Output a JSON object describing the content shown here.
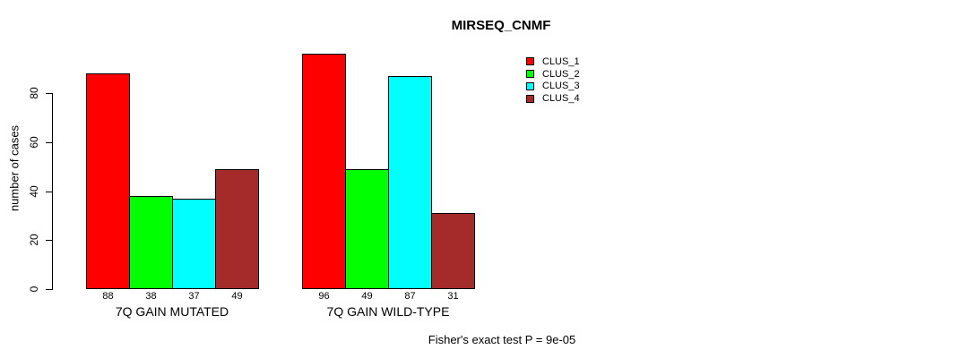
{
  "chart_data": {
    "type": "bar",
    "title": "MIRSEQ_CNMF",
    "ylabel": "number of cases",
    "footnote": "Fisher's exact test P = 9e-05",
    "categories": [
      "7Q GAIN MUTATED",
      "7Q GAIN WILD-TYPE"
    ],
    "series": [
      {
        "name": "CLUS_1",
        "color": "#ff0000",
        "values": [
          88,
          96
        ]
      },
      {
        "name": "CLUS_2",
        "color": "#00ff00",
        "values": [
          38,
          49
        ]
      },
      {
        "name": "CLUS_3",
        "color": "#00ffff",
        "values": [
          37,
          87
        ]
      },
      {
        "name": "CLUS_4",
        "color": "#a52a2a",
        "values": [
          49,
          31
        ]
      }
    ],
    "yticks": [
      0,
      20,
      40,
      60,
      80
    ],
    "ylim": [
      0,
      96
    ],
    "grid": false,
    "bar_value_labels_shown": true,
    "legend_position": "top-right",
    "background_color": "#ffffff",
    "text_color": "#000000"
  }
}
